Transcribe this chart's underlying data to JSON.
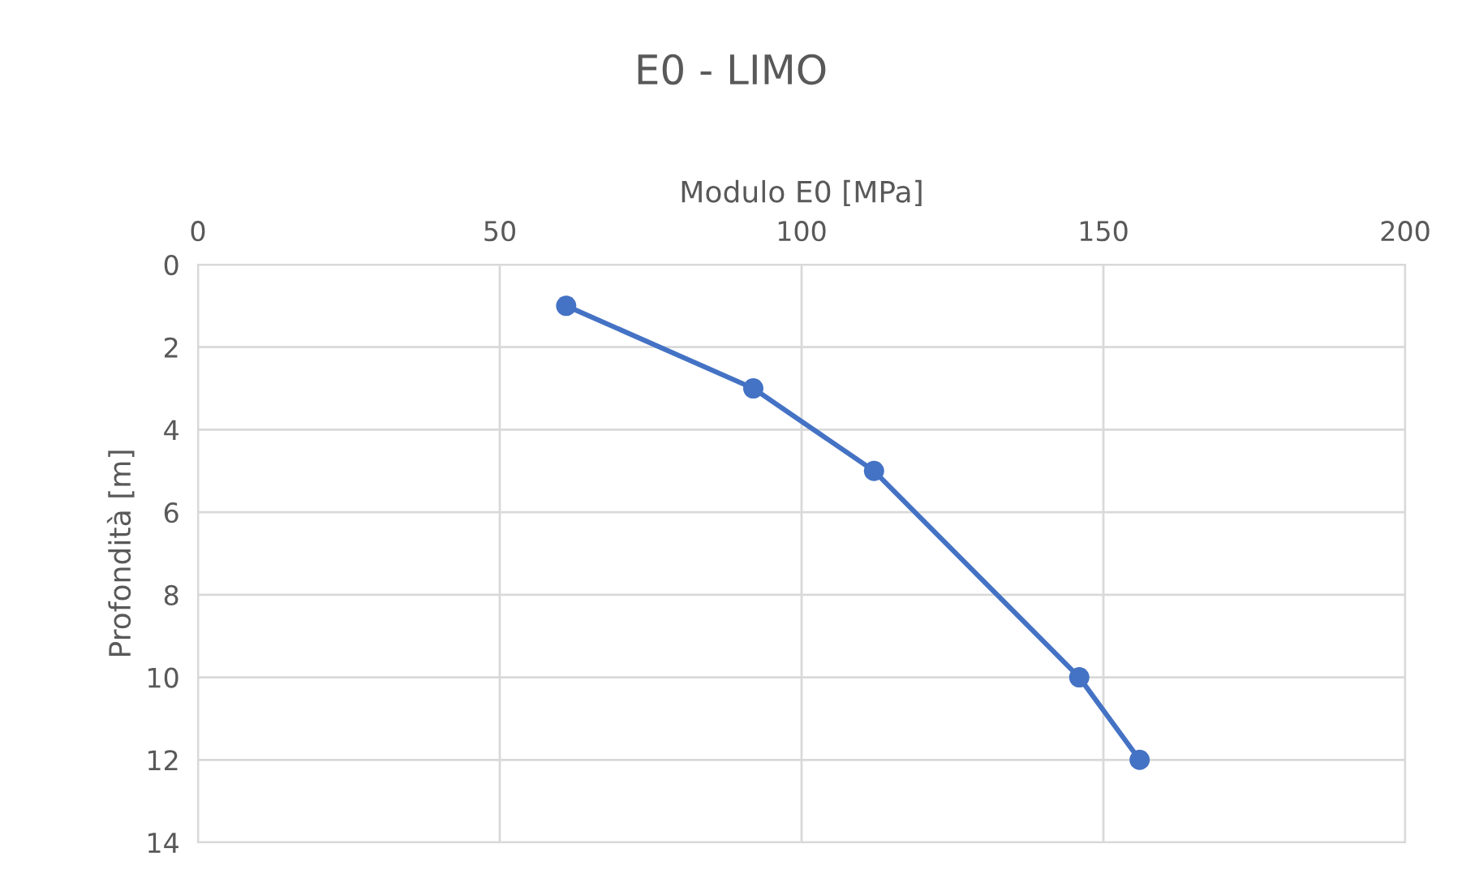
{
  "chart_data": {
    "type": "line",
    "title": "E0 - LIMO",
    "xlabel": "Modulo E0 [MPa]",
    "ylabel": "Profondità [m]",
    "x": [
      61,
      92,
      112,
      146,
      156
    ],
    "series": [
      {
        "color": "#4472c4",
        "values": [
          1,
          3,
          5,
          10,
          12
        ]
      }
    ],
    "xlim": [
      0,
      200
    ],
    "xticks": [
      0,
      50,
      100,
      150,
      200
    ],
    "ylim": [
      14,
      0
    ],
    "yticks": [
      0,
      2,
      4,
      6,
      8,
      10,
      12,
      14
    ],
    "grid": true,
    "marker": "circle",
    "line_style": "solid"
  }
}
